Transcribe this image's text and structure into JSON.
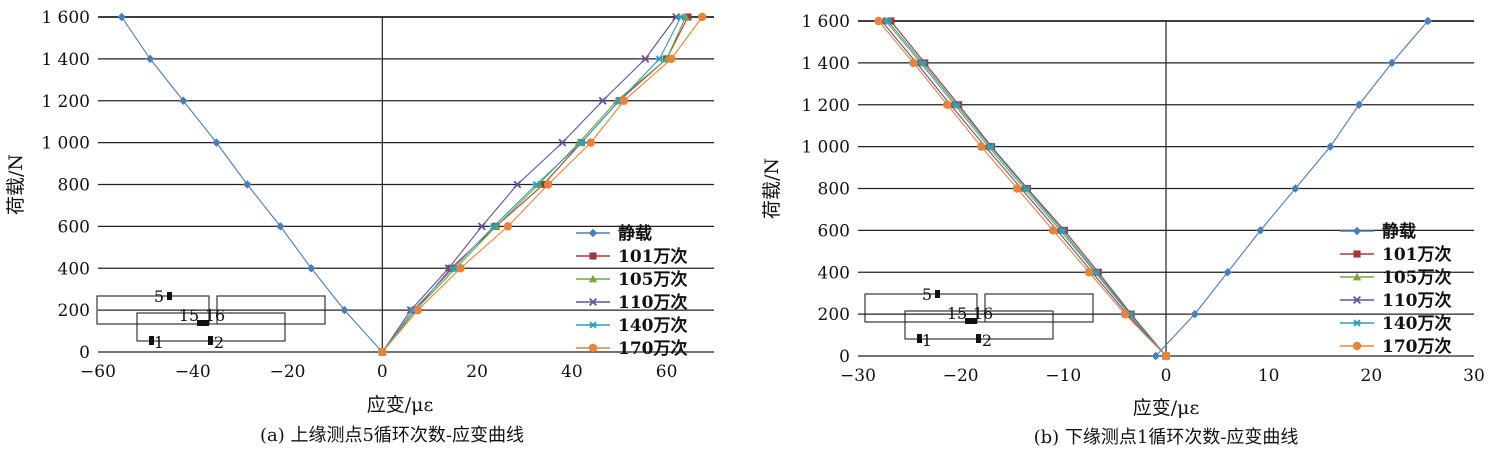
{
  "chart_data": [
    {
      "type": "line",
      "caption": "(a) 上缘测点5循环次数-应变曲线",
      "xlabel": "应变/με",
      "ylabel": "荷载/N",
      "xlim": [
        -60,
        70
      ],
      "ylim": [
        0,
        1600
      ],
      "xticks": [
        -60,
        -40,
        -20,
        0,
        20,
        40,
        60
      ],
      "xtick_labels": [
        "−60",
        "−40",
        "−20",
        "0",
        "20",
        "40",
        "60"
      ],
      "yticks": [
        0,
        200,
        400,
        600,
        800,
        1000,
        1200,
        1400,
        1600
      ],
      "ytick_labels": [
        "0",
        "200",
        "400",
        "600",
        "800",
        "1 000",
        "1 200",
        "1 400",
        "1 600"
      ],
      "grid": "horizontal",
      "legend_position": "right",
      "inset_labels": [
        "5",
        "15",
        "16",
        "1",
        "2"
      ],
      "series": [
        {
          "name": "静载",
          "color": "#4a7ebb",
          "marker": "diamond",
          "x": [
            0,
            -8,
            -15,
            -21.5,
            -28.5,
            -35,
            -42,
            -49,
            -55
          ],
          "y": [
            0,
            200,
            400,
            600,
            800,
            1000,
            1200,
            1400,
            1600
          ]
        },
        {
          "name": "101万次",
          "color": "#a33a3a",
          "marker": "square",
          "x": [
            0,
            7,
            14.5,
            24,
            34,
            42,
            50,
            60,
            64.5
          ],
          "y": [
            0,
            200,
            400,
            600,
            800,
            1000,
            1200,
            1400,
            1600
          ]
        },
        {
          "name": "105万次",
          "color": "#7aa43f",
          "marker": "triangle",
          "x": [
            0,
            7,
            15.5,
            24,
            33,
            41.5,
            49.5,
            60,
            64
          ],
          "y": [
            0,
            200,
            400,
            600,
            800,
            1000,
            1200,
            1400,
            1600
          ]
        },
        {
          "name": "110万次",
          "color": "#6b4f9a",
          "marker": "x",
          "x": [
            0,
            6,
            14,
            21,
            28.5,
            38,
            46.5,
            55.5,
            62
          ],
          "y": [
            0,
            200,
            400,
            600,
            800,
            1000,
            1200,
            1400,
            1600
          ]
        },
        {
          "name": "140万次",
          "color": "#2ea0b8",
          "marker": "asterisk",
          "x": [
            0,
            6.5,
            15,
            23.5,
            32.5,
            42,
            50,
            58.5,
            63
          ],
          "y": [
            0,
            200,
            400,
            600,
            800,
            1000,
            1200,
            1400,
            1600
          ]
        },
        {
          "name": "170万次",
          "color": "#e8833a",
          "marker": "circle",
          "x": [
            0,
            7.5,
            16.5,
            26.5,
            35,
            44,
            51,
            61,
            67.5
          ],
          "y": [
            0,
            200,
            400,
            600,
            800,
            1000,
            1200,
            1400,
            1600
          ]
        }
      ]
    },
    {
      "type": "line",
      "caption": "(b) 下缘测点1循环次数-应变曲线",
      "xlabel": "应变/με",
      "ylabel": "荷载/N",
      "xlim": [
        -30,
        30
      ],
      "ylim": [
        0,
        1600
      ],
      "xticks": [
        -30,
        -20,
        -10,
        0,
        10,
        20,
        30
      ],
      "xtick_labels": [
        "−30",
        "−20",
        "−10",
        "0",
        "10",
        "20",
        "30"
      ],
      "yticks": [
        0,
        200,
        400,
        600,
        800,
        1000,
        1200,
        1400,
        1600
      ],
      "ytick_labels": [
        "0",
        "200",
        "400",
        "600",
        "800",
        "1 000",
        "1 200",
        "1 400",
        "1 600"
      ],
      "grid": "horizontal",
      "legend_position": "right",
      "inset_labels": [
        "5",
        "15",
        "16",
        "1",
        "2"
      ],
      "series": [
        {
          "name": "静载",
          "color": "#4a7ebb",
          "marker": "diamond",
          "x": [
            -1,
            2.8,
            6,
            9.2,
            12.6,
            16,
            18.8,
            22,
            25.5
          ],
          "y": [
            0,
            200,
            400,
            600,
            800,
            1000,
            1200,
            1400,
            1600
          ]
        },
        {
          "name": "101万次",
          "color": "#a33a3a",
          "marker": "square",
          "x": [
            0,
            -3.4,
            -6.6,
            -9.9,
            -13.5,
            -17,
            -20.2,
            -23.5,
            -26.8
          ],
          "y": [
            0,
            200,
            400,
            600,
            800,
            1000,
            1200,
            1400,
            1600
          ]
        },
        {
          "name": "105万次",
          "color": "#7aa43f",
          "marker": "triangle",
          "x": [
            0,
            -3.6,
            -6.9,
            -10.3,
            -13.8,
            -17.3,
            -20.6,
            -23.9,
            -27.3
          ],
          "y": [
            0,
            200,
            400,
            600,
            800,
            1000,
            1200,
            1400,
            1600
          ]
        },
        {
          "name": "110万次",
          "color": "#6b4f9a",
          "marker": "x",
          "x": [
            0,
            -3.8,
            -7.2,
            -10.6,
            -14.1,
            -17.6,
            -21,
            -24.3,
            -27.7
          ],
          "y": [
            0,
            200,
            400,
            600,
            800,
            1000,
            1200,
            1400,
            1600
          ]
        },
        {
          "name": "140万次",
          "color": "#2ea0b8",
          "marker": "asterisk",
          "x": [
            0,
            -3.5,
            -6.8,
            -10.1,
            -13.6,
            -17.1,
            -20.4,
            -23.7,
            -27.1
          ],
          "y": [
            0,
            200,
            400,
            600,
            800,
            1000,
            1200,
            1400,
            1600
          ]
        },
        {
          "name": "170万次",
          "color": "#e8833a",
          "marker": "circle",
          "x": [
            0,
            -4,
            -7.5,
            -11,
            -14.5,
            -18,
            -21.3,
            -24.6,
            -28
          ],
          "y": [
            0,
            200,
            400,
            600,
            800,
            1000,
            1200,
            1400,
            1600
          ]
        }
      ]
    }
  ]
}
